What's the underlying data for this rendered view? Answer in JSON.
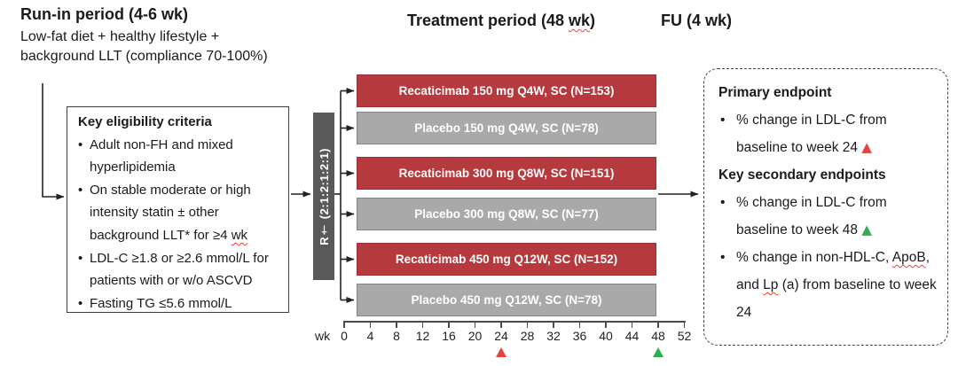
{
  "colors": {
    "drug_bar": "#b5393d",
    "placebo_bar": "#a9a9a9",
    "randomization_bar": "#595959",
    "highlight_red": "#e8403c",
    "highlight_green": "#2fac4f",
    "squiggle": "#ff3b30"
  },
  "header": {
    "run_in_title": "Run-in period (4-6 wk)",
    "run_in_sub_line1": "Low-fat diet + healthy lifestyle +",
    "run_in_sub_line2": "background LLT (compliance 70-100%)",
    "treatment_title_pre": "Treatment period (48 ",
    "treatment_title_wavy": "wk",
    "treatment_title_post": ")",
    "fu_title": "FU (4 wk)"
  },
  "eligibility_box": {
    "title": "Key eligibility criteria",
    "items": [
      {
        "text": "Adult non-FH and mixed hyperlipidemia",
        "wavy": ""
      },
      {
        "text": "On stable moderate or high intensity statin ± other background LLT* for ≥4 ",
        "wavy": "wk"
      },
      {
        "text": "LDL-C ≥1.8 or ≥2.6 mmol/L for patients with or w/o ASCVD",
        "wavy": ""
      },
      {
        "text": "Fasting TG ≤5.6 mmol/L",
        "wavy": ""
      }
    ]
  },
  "randomization": {
    "label": "R† (2:1:2:1:2:1)"
  },
  "arms": [
    {
      "label": "Recaticimab 150 mg Q4W, SC (N=153)",
      "type": "drug"
    },
    {
      "label": "Placebo 150 mg Q4W, SC (N=78)",
      "type": "placebo"
    },
    {
      "label": "Recaticimab 300 mg Q8W, SC (N=151)",
      "type": "drug"
    },
    {
      "label": "Placebo 300 mg Q8W, SC (N=77)",
      "type": "placebo"
    },
    {
      "label": "Recaticimab 450 mg Q12W, SC (N=152)",
      "type": "drug"
    },
    {
      "label": "Placebo 450 mg Q12W, SC (N=78)",
      "type": "placebo"
    }
  ],
  "timeline": {
    "unit_label": "wk",
    "ticks": [
      0,
      4,
      8,
      12,
      16,
      20,
      24,
      28,
      32,
      36,
      40,
      44,
      48,
      52
    ],
    "markers": [
      {
        "week": 24,
        "color": "#e8403c"
      },
      {
        "week": 48,
        "color": "#2fac4f"
      }
    ]
  },
  "endpoints_box": {
    "primary_title": "Primary endpoint",
    "primary_item": {
      "text": "% change in LDL-C from baseline to week 24 ",
      "marker": "▲",
      "marker_color": "#e8403c"
    },
    "secondary_title": "Key secondary endpoints",
    "secondary_item1": {
      "text": "% change in LDL-C from baseline to week 48 ",
      "marker": "▲",
      "marker_color": "#2fac4f"
    },
    "secondary_item2": {
      "t1": "% change in non-HDL-C, ",
      "w1": "ApoB",
      "t2": ", and ",
      "w2": "Lp",
      "t3": " (a) from baseline to week 24"
    }
  }
}
